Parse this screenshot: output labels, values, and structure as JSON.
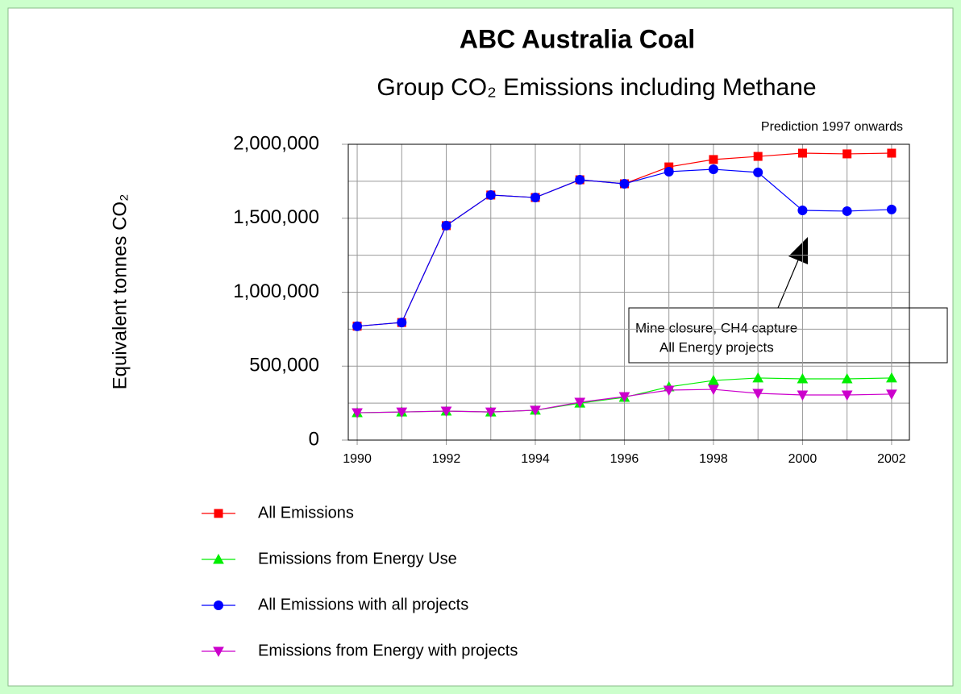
{
  "chart_data": {
    "type": "line",
    "title": "ABC Australia Coal",
    "subtitle": "Group CO₂ Emissions including Methane",
    "y_label": "Equivalent tonnes CO₂",
    "annotations": [
      "Prediction 1997 onwards",
      "Mine closure, CH4 capture",
      "All Energy projects"
    ],
    "x": [
      1990,
      1991,
      1992,
      1993,
      1994,
      1995,
      1996,
      1997,
      1998,
      1999,
      2000,
      2001,
      2002
    ],
    "series": [
      {
        "name": "All Emissions",
        "color": "#ff0000",
        "marker": "square",
        "values": [
          770000,
          795000,
          1450000,
          1657000,
          1640000,
          1760000,
          1733000,
          1847000,
          1897000,
          1918000,
          1940000,
          1935000,
          1940000
        ]
      },
      {
        "name": "Emissions from Energy Use",
        "color": "#00ee00",
        "marker": "triangle-up",
        "values": [
          185000,
          190000,
          196000,
          190000,
          202000,
          250000,
          289000,
          360000,
          403000,
          420000,
          414000,
          414000,
          420000
        ]
      },
      {
        "name": "All Emissions with all projects",
        "color": "#0000ff",
        "marker": "circle",
        "values": [
          770000,
          795000,
          1450000,
          1657000,
          1640000,
          1760000,
          1733000,
          1815000,
          1831000,
          1810000,
          1553000,
          1548000,
          1559000
        ]
      },
      {
        "name": "Emissions from Energy with projects",
        "color": "#cc00cc",
        "marker": "triangle-down",
        "values": [
          185000,
          190000,
          196000,
          190000,
          202000,
          256000,
          294000,
          338000,
          343000,
          316000,
          305000,
          305000,
          311000
        ]
      }
    ],
    "xlim": [
      1989.8,
      2002.4
    ],
    "xticks": [
      1990,
      1992,
      1994,
      1996,
      1998,
      2000,
      2002
    ],
    "xminorticks": [
      1991,
      1993,
      1995,
      1997,
      1999,
      2001
    ],
    "ylim": [
      0,
      2000000
    ],
    "yticks": [
      0,
      {
        "value": 500000,
        "label": "500,000"
      },
      {
        "value": 1000000,
        "label": "1,000,000"
      },
      {
        "value": 1500000,
        "label": "1,500,000"
      },
      {
        "value": 2000000,
        "label": "2,000,000"
      }
    ],
    "yminorticks": [
      250000,
      750000,
      1250000,
      1750000
    ],
    "grid": true
  }
}
